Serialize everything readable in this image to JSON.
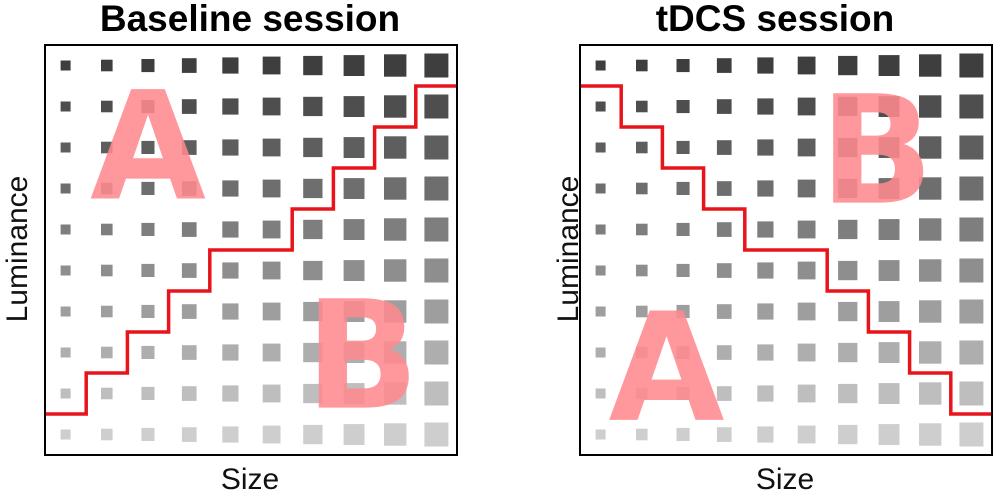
{
  "panels": [
    {
      "title": "Baseline session",
      "xlabel": "Size",
      "ylabel": "Luminance",
      "regions": [
        {
          "letter": "A",
          "col": 2.5,
          "row": 2.0
        },
        {
          "letter": "B",
          "col": 7.7,
          "row": 7.1
        }
      ],
      "boundary_levels": [
        1,
        2,
        3,
        4,
        5,
        5,
        6,
        7,
        8,
        9
      ]
    },
    {
      "title": "tDCS session",
      "xlabel": "Size",
      "ylabel": "Luminance",
      "regions": [
        {
          "letter": "B",
          "col": 7.2,
          "row": 2.1
        },
        {
          "letter": "A",
          "col": 2.1,
          "row": 7.4
        }
      ],
      "boundary_levels": [
        9,
        8,
        7,
        6,
        5,
        5,
        4,
        3,
        2,
        1
      ]
    }
  ],
  "grid": {
    "size_levels": 10,
    "luminance_levels": 10
  },
  "colors": {
    "boundary": "#e8141b",
    "letter": "#ff8a8f",
    "frame": "#000000"
  }
}
